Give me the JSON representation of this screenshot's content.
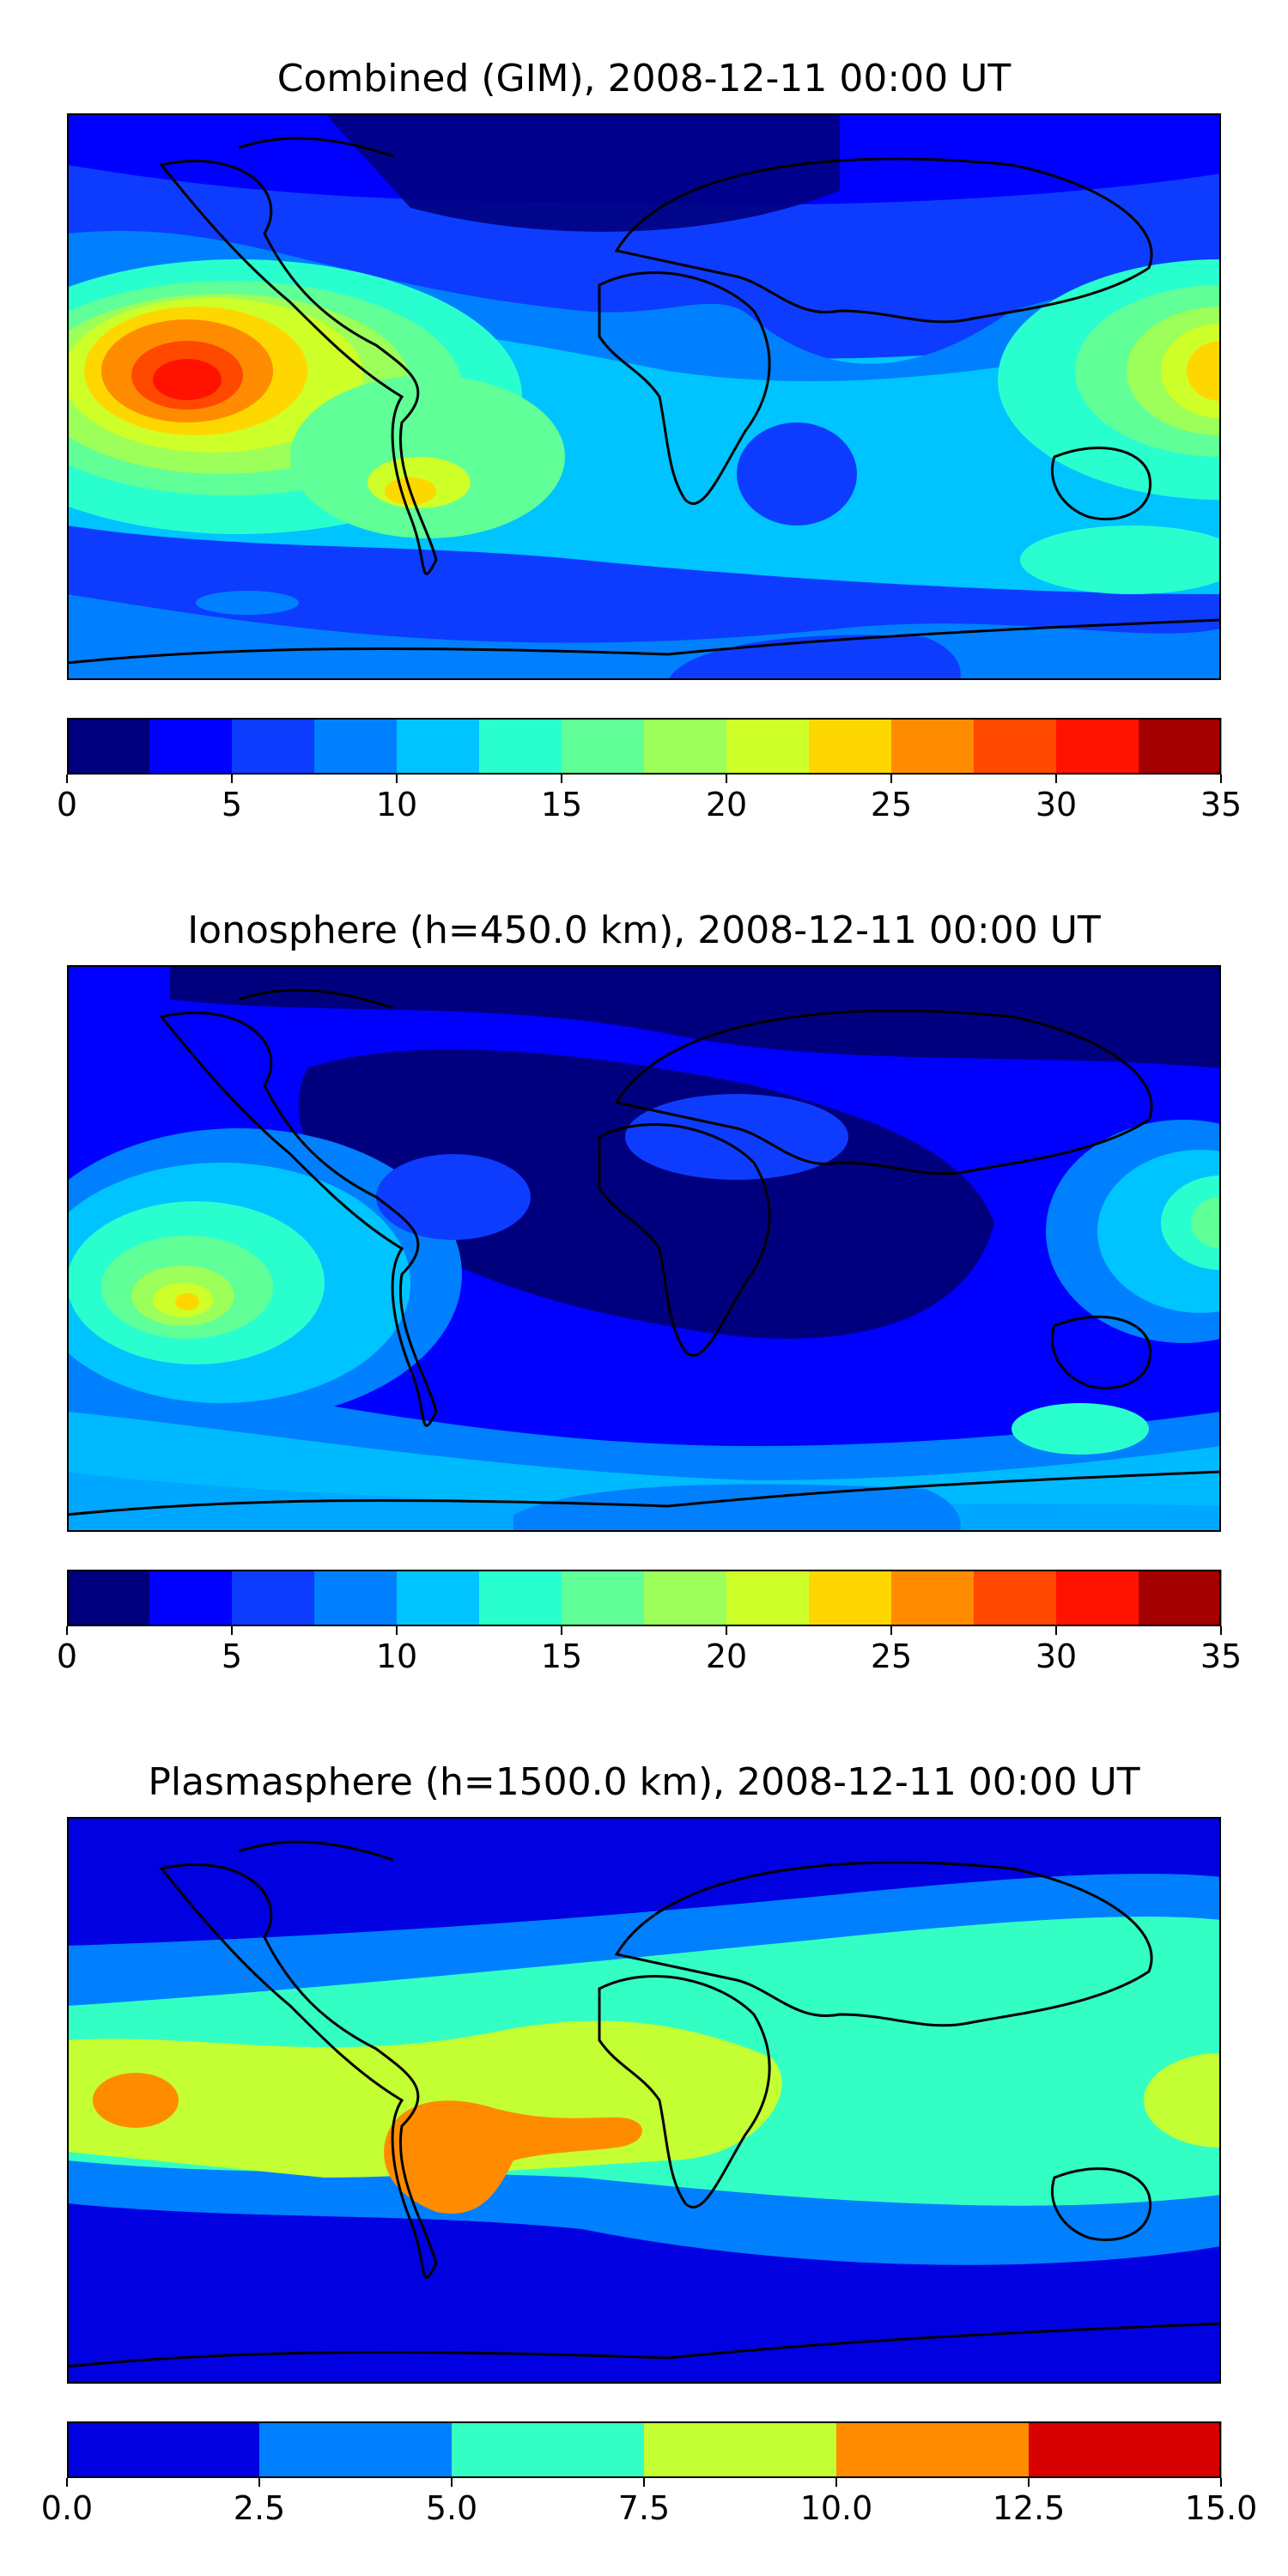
{
  "panels": [
    {
      "title": "Combined (GIM), 2008-12-11 00:00 UT",
      "colorbar": {
        "ticks": [
          "0",
          "5",
          "10",
          "15",
          "20",
          "25",
          "30",
          "35"
        ],
        "colors": [
          "#00007f",
          "#0000ff",
          "#0d3cff",
          "#0080ff",
          "#00c4ff",
          "#29ffce",
          "#60ff97",
          "#9cff5a",
          "#ceff29",
          "#ffd700",
          "#ff8c00",
          "#ff4800",
          "#ff1300",
          "#a50000"
        ]
      }
    },
    {
      "title": "Ionosphere  (h=450.0 km), 2008-12-11 00:00 UT",
      "colorbar": {
        "ticks": [
          "0",
          "5",
          "10",
          "15",
          "20",
          "25",
          "30",
          "35"
        ],
        "colors": [
          "#00007f",
          "#0000ff",
          "#0d3cff",
          "#0080ff",
          "#00c4ff",
          "#29ffce",
          "#60ff97",
          "#9cff5a",
          "#ceff29",
          "#ffd700",
          "#ff8c00",
          "#ff4800",
          "#ff1300",
          "#a50000"
        ]
      }
    },
    {
      "title": "Plasmasphere (h=1500.0 km), 2008-12-11 00:00 UT",
      "colorbar": {
        "ticks": [
          "0.0",
          "2.5",
          "5.0",
          "7.5",
          "10.0",
          "12.5",
          "15.0"
        ],
        "colors": [
          "#0000e0",
          "#0080ff",
          "#33ffc4",
          "#c4ff33",
          "#ff8c00",
          "#d80000"
        ]
      }
    }
  ]
}
